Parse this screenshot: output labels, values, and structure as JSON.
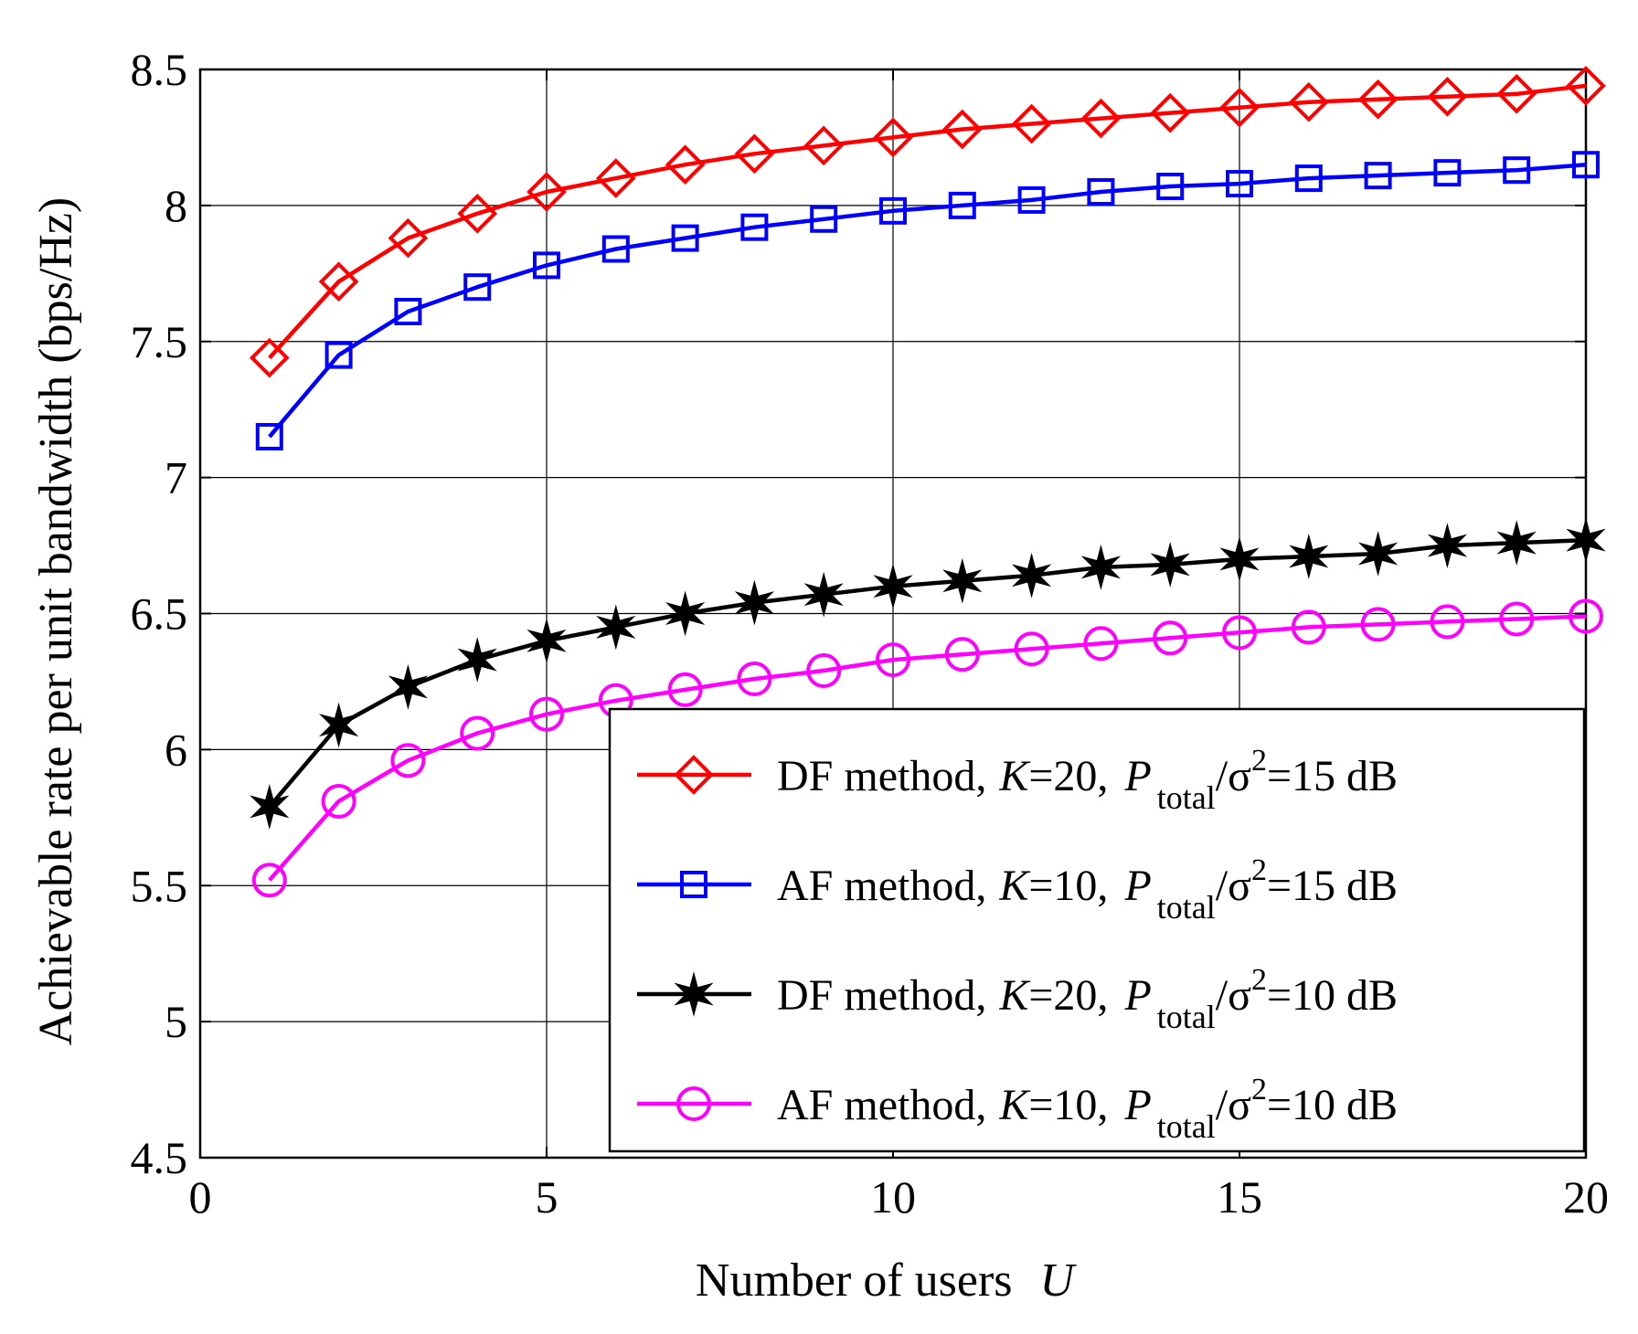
{
  "chart_data": {
    "type": "line",
    "title": "",
    "xlabel": "Number of users",
    "xlabel_var": "U",
    "ylabel": "Achievable rate per unit bandwidth (bps/Hz)",
    "xlim": [
      0,
      20
    ],
    "ylim": [
      4.5,
      8.5
    ],
    "xticks": [
      0,
      5,
      10,
      15,
      20
    ],
    "yticks": [
      4.5,
      5,
      5.5,
      6,
      6.5,
      7,
      7.5,
      8,
      8.5
    ],
    "grid": true,
    "legend_position": "bottom-right",
    "x": [
      1,
      2,
      3,
      4,
      5,
      6,
      7,
      8,
      9,
      10,
      11,
      12,
      13,
      14,
      15,
      16,
      17,
      18,
      19,
      20
    ],
    "series": [
      {
        "name": "DF method, K=20, P_total/σ²=15 dB",
        "method": "DF method,",
        "k_var": "K",
        "k_value": "=20,",
        "p_var": "P",
        "p_sub": "total",
        "sigma": "/σ",
        "sigma_sup": "2",
        "snr": "=15 dB",
        "color": "#ff0000",
        "marker": "diamond",
        "values": [
          7.44,
          7.72,
          7.88,
          7.97,
          8.05,
          8.1,
          8.15,
          8.19,
          8.22,
          8.25,
          8.28,
          8.3,
          8.32,
          8.34,
          8.36,
          8.38,
          8.39,
          8.4,
          8.41,
          8.44
        ]
      },
      {
        "name": "AF method, K=10, P_total/σ²=15 dB",
        "method": "AF method,",
        "k_var": "K",
        "k_value": "=10,",
        "p_var": "P",
        "p_sub": "total",
        "sigma": "/σ",
        "sigma_sup": "2",
        "snr": "=15 dB",
        "color": "#0000ff",
        "marker": "square",
        "values": [
          7.15,
          7.45,
          7.61,
          7.7,
          7.78,
          7.84,
          7.88,
          7.92,
          7.95,
          7.98,
          8.0,
          8.02,
          8.05,
          8.07,
          8.08,
          8.1,
          8.11,
          8.12,
          8.13,
          8.15
        ]
      },
      {
        "name": "DF method, K=20, P_total/σ²=10 dB",
        "method": "DF method,",
        "k_var": "K",
        "k_value": "=20,",
        "p_var": "P",
        "p_sub": "total",
        "sigma": "/σ",
        "sigma_sup": "2",
        "snr": "=10 dB",
        "color": "#000000",
        "marker": "star",
        "values": [
          5.79,
          6.09,
          6.23,
          6.33,
          6.4,
          6.45,
          6.5,
          6.54,
          6.57,
          6.6,
          6.62,
          6.64,
          6.67,
          6.68,
          6.7,
          6.71,
          6.72,
          6.75,
          6.76,
          6.77
        ]
      },
      {
        "name": "AF method, K=10, P_total/σ²=10 dB",
        "method": "AF method,",
        "k_var": "K",
        "k_value": "=10,",
        "p_var": "P",
        "p_sub": "total",
        "sigma": "/σ",
        "sigma_sup": "2",
        "snr": "=10 dB",
        "color": "#ff00ff",
        "marker": "circle",
        "values": [
          5.52,
          5.81,
          5.96,
          6.06,
          6.13,
          6.18,
          6.22,
          6.26,
          6.29,
          6.33,
          6.35,
          6.37,
          6.39,
          6.41,
          6.43,
          6.45,
          6.46,
          6.47,
          6.48,
          6.49
        ]
      }
    ]
  }
}
